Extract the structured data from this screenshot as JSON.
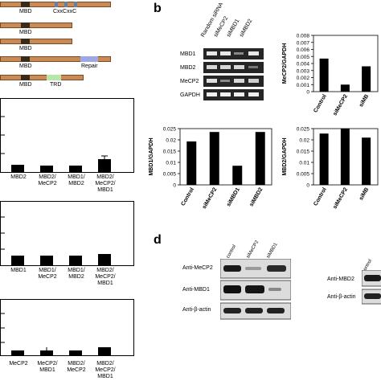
{
  "panel_b_letter": "b",
  "panel_d_letter": "d",
  "panel_a": {
    "domain_labels": {
      "mbd1_a": "MBD",
      "cxxc": "CxxCxxC",
      "mbd_2": "MBD",
      "mbd_3": "MBD",
      "mbd_4": "MBD",
      "repair": "Repair",
      "mbd_5": "MBD",
      "trd": "TRD"
    }
  },
  "left_charts": {
    "chart1": {
      "categories": [
        [
          "MBD2"
        ],
        [
          "MBD2/",
          "MeCP2"
        ],
        [
          "MBD1/",
          "MBD2"
        ],
        [
          "MBD2/",
          "MeCP2/",
          "MBD1"
        ]
      ]
    },
    "chart2": {
      "categories": [
        [
          "MBD1"
        ],
        [
          "MBD1/",
          "MeCP2"
        ],
        [
          "MBD1/",
          "MBD2"
        ],
        [
          "MBD2/",
          "MeCP2/",
          "MBD1"
        ]
      ]
    },
    "chart3": {
      "categories": [
        [
          "MeCP2"
        ],
        [
          "MeCP2/",
          "MBD1"
        ],
        [
          "MBD2/",
          "MeCP2"
        ],
        [
          "MBD2/",
          "MeCP2/",
          "MBD1"
        ]
      ]
    }
  },
  "rtpcr": {
    "lanes": [
      "Random siRNA",
      "siMeCP2",
      "siMBD1",
      "siMBD2"
    ],
    "rows": [
      "MBD1",
      "MBD2",
      "MeCP2",
      "GAPDH"
    ]
  },
  "western": {
    "lanes": [
      "control",
      "siMeCP2",
      "siMBD1"
    ],
    "rows": [
      "Anti-MeCP2",
      "Anti-MBD1",
      "Anti-β-actin"
    ],
    "right_lane": "control",
    "right_rows": [
      "Anti-MBD2",
      "Anti-β-actin"
    ]
  },
  "chart_data": [
    {
      "type": "bar",
      "ylabel": "MeCP2/GAPDH",
      "categories": [
        "Control",
        "siMeCP2",
        "siMB"
      ],
      "values": [
        0.0047,
        0.001,
        0.0036
      ],
      "ylim": [
        0,
        0.008
      ],
      "yticks": [
        "0",
        "0.001",
        "0.002",
        "0.003",
        "0.004",
        "0.005",
        "0.006",
        "0.007",
        "0.008"
      ]
    },
    {
      "type": "bar",
      "ylabel": "MBD1/GAPDH",
      "categories": [
        "Control",
        "siMeCP2",
        "siMBD1",
        "siMBD2"
      ],
      "values": [
        0.0193,
        0.0235,
        0.0085,
        0.0235
      ],
      "ylim": [
        0,
        0.025
      ],
      "yticks": [
        "0",
        "0.005",
        "0.01",
        "0.015",
        "0.02",
        "0.025"
      ]
    },
    {
      "type": "bar",
      "ylabel": "MBD2/GAPDH",
      "categories": [
        "Control",
        "siMeCP2",
        "siMB"
      ],
      "values": [
        0.0228,
        0.025,
        0.021
      ],
      "ylim": [
        0,
        0.025
      ],
      "yticks": [
        "0",
        "0.005",
        "0.01",
        "0.015",
        "0.02",
        "0.025"
      ]
    }
  ]
}
